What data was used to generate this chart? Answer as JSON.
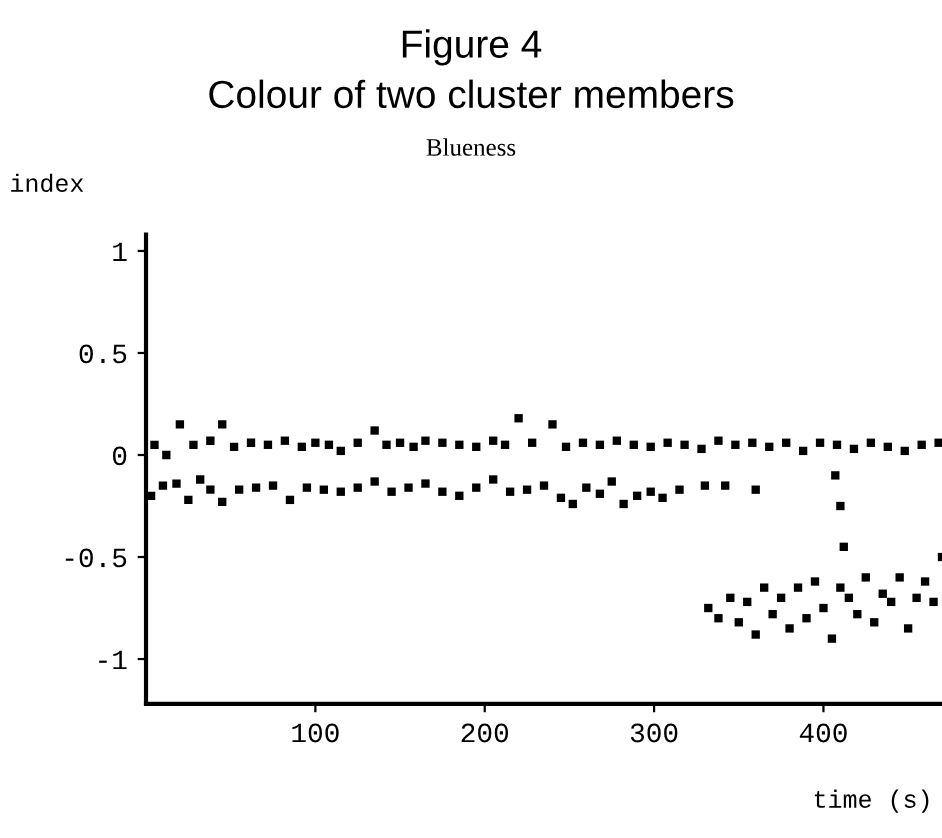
{
  "chart_data": {
    "type": "scatter",
    "title": "Figure 4",
    "subtitle": "Colour of two cluster members",
    "annotations": [
      "Blueness"
    ],
    "xlabel": "time (s)",
    "ylabel": "index",
    "marker": "square",
    "xlim": [
      0,
      470
    ],
    "xticks": [
      100,
      200,
      300,
      400
    ],
    "ylim": [
      -1.22,
      1.08
    ],
    "yticks": [
      -1,
      -0.5,
      0,
      0.5,
      1
    ],
    "series": [
      {
        "color": "#000000",
        "x": [
          5,
          12,
          20,
          28,
          38,
          45,
          52,
          62,
          72,
          82,
          92,
          100,
          108,
          115,
          125,
          135,
          142,
          150,
          158,
          165,
          175,
          185,
          195,
          205,
          212,
          220,
          228,
          240,
          248,
          258,
          268,
          278,
          288,
          298,
          308,
          318,
          328,
          338,
          348,
          358,
          368,
          378,
          388,
          398,
          408,
          418,
          428,
          438,
          448,
          458,
          468
        ],
        "values": [
          0.05,
          0.0,
          0.15,
          0.05,
          0.07,
          0.15,
          0.04,
          0.06,
          0.05,
          0.07,
          0.04,
          0.06,
          0.05,
          0.02,
          0.06,
          0.12,
          0.05,
          0.06,
          0.04,
          0.07,
          0.06,
          0.05,
          0.04,
          0.07,
          0.05,
          0.18,
          0.06,
          0.15,
          0.04,
          0.06,
          0.05,
          0.07,
          0.05,
          0.04,
          0.06,
          0.05,
          0.03,
          0.07,
          0.05,
          0.06,
          0.04,
          0.06,
          0.02,
          0.06,
          0.05,
          0.03,
          0.06,
          0.04,
          0.02,
          0.05,
          0.06
        ]
      },
      {
        "color": "#000000",
        "x": [
          3,
          10,
          18,
          25,
          32,
          38,
          45,
          55,
          65,
          75,
          85,
          95,
          105,
          115,
          125,
          135,
          145,
          155,
          165,
          175,
          185,
          195,
          205,
          215,
          225,
          235,
          245,
          252,
          260,
          268,
          275,
          282,
          290,
          298,
          305,
          315,
          330,
          342,
          360,
          407,
          410,
          412,
          332,
          338,
          345,
          350,
          355,
          360,
          365,
          370,
          375,
          380,
          385,
          390,
          395,
          400,
          405,
          410,
          415,
          420,
          425,
          430,
          435,
          440,
          445,
          450,
          455,
          460,
          465,
          470
        ],
        "values": [
          -0.2,
          -0.15,
          -0.14,
          -0.22,
          -0.12,
          -0.17,
          -0.23,
          -0.17,
          -0.16,
          -0.15,
          -0.22,
          -0.16,
          -0.17,
          -0.18,
          -0.16,
          -0.13,
          -0.18,
          -0.16,
          -0.14,
          -0.18,
          -0.2,
          -0.16,
          -0.12,
          -0.18,
          -0.17,
          -0.15,
          -0.21,
          -0.24,
          -0.16,
          -0.19,
          -0.13,
          -0.24,
          -0.2,
          -0.18,
          -0.21,
          -0.17,
          -0.15,
          -0.15,
          -0.17,
          -0.1,
          -0.25,
          -0.45,
          -0.75,
          -0.8,
          -0.7,
          -0.82,
          -0.72,
          -0.88,
          -0.65,
          -0.78,
          -0.7,
          -0.85,
          -0.65,
          -0.8,
          -0.62,
          -0.75,
          -0.9,
          -0.65,
          -0.7,
          -0.78,
          -0.6,
          -0.82,
          -0.68,
          -0.72,
          -0.6,
          -0.85,
          -0.7,
          -0.62,
          -0.72,
          -0.5
        ]
      }
    ]
  }
}
